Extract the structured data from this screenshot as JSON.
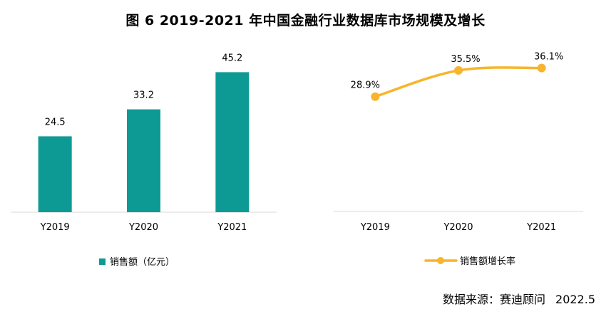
{
  "title": "图 6   2019-2021 年中国金融行业数据库市场规模及增长",
  "source_label": "数据来源：赛迪顾问",
  "source_date": "2022.5",
  "chart_data": [
    {
      "type": "bar",
      "categories": [
        "Y2019",
        "Y2020",
        "Y2021"
      ],
      "series": [
        {
          "name": "销售额（亿元）",
          "values": [
            24.5,
            33.2,
            45.2
          ],
          "color": "#0e9a94"
        }
      ],
      "ylim": [
        0,
        60
      ],
      "data_labels": [
        "24.5",
        "33.2",
        "45.2"
      ],
      "legend_placement": "bottom"
    },
    {
      "type": "line",
      "categories": [
        "Y2019",
        "Y2020",
        "Y2021"
      ],
      "series": [
        {
          "name": "销售额增长率",
          "values": [
            28.9,
            35.5,
            36.1
          ],
          "color": "#f7b42c"
        }
      ],
      "ylim": [
        0,
        50
      ],
      "data_labels": [
        "28.9%",
        "35.5%",
        "36.1%"
      ],
      "legend_placement": "bottom"
    }
  ]
}
